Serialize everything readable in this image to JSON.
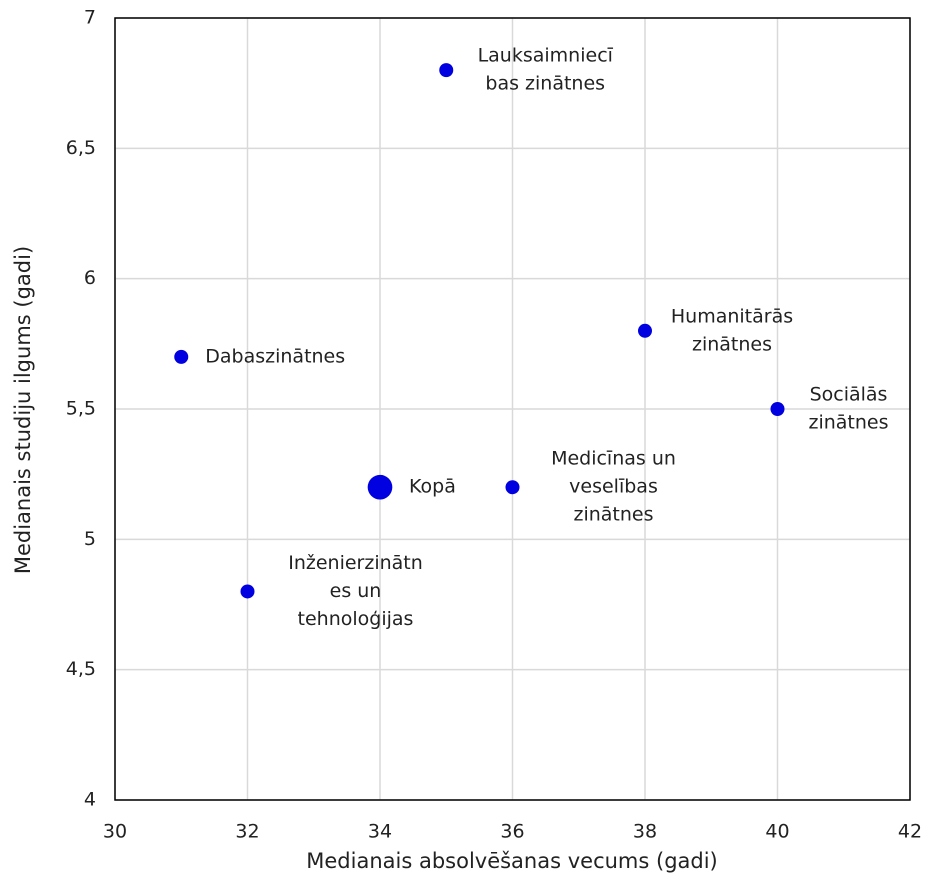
{
  "chart_data": {
    "type": "scatter",
    "x_label": "Medianais absolvēšanas vecums (gadi)",
    "y_label": "Medianais studiju ilgums (gadi)",
    "labels": [
      [
        "Dabaszinātnes"
      ],
      [
        "Inženierzinātn",
        "es un",
        "tehnoloģijas"
      ],
      [
        "Kopā"
      ],
      [
        "Lauksaimniecī",
        "bas zinātnes"
      ],
      [
        "Medicīnas un",
        "veselības",
        "zinātnes"
      ],
      [
        "Humanitārās",
        "zinātnes"
      ],
      [
        "Sociālās",
        "zinātnes"
      ]
    ],
    "x": [
      31,
      32,
      34,
      35,
      36,
      38,
      40
    ],
    "values": [
      5.7,
      4.8,
      5.2,
      6.8,
      5.2,
      5.8,
      5.5
    ],
    "sizes": [
      1,
      1,
      2,
      1,
      1,
      1,
      1
    ],
    "color": "#0000e0",
    "xlim": [
      30,
      42
    ],
    "xticks": [
      30,
      32,
      34,
      36,
      38,
      40,
      42
    ],
    "ylim": [
      4,
      7
    ],
    "yticks": [
      4,
      {
        "value": 4.5,
        "label": "4,5"
      },
      5,
      {
        "value": 5.5,
        "label": "5,5"
      },
      6,
      {
        "value": 6.5,
        "label": "6,5"
      },
      7
    ],
    "grid": true
  }
}
